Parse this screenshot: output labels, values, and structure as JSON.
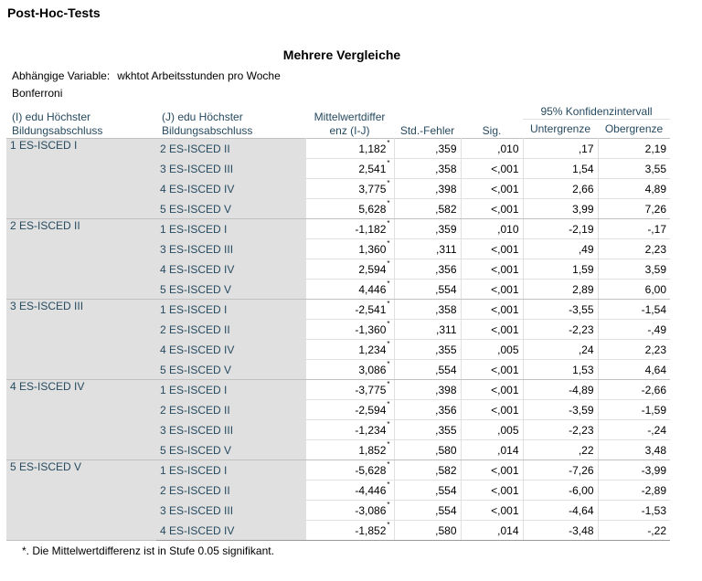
{
  "section_title": "Post-Hoc-Tests",
  "table_title": "Mehrere Vergleiche",
  "dependent_label": "Abhängige Variable:",
  "dependent_value": "wkhtot Arbeitsstunden pro Woche",
  "method": "Bonferroni",
  "headers": {
    "i_label_1": "(I) edu Höchster",
    "i_label_2": "Bildungsabschluss",
    "j_label_1": "(J) edu Höchster",
    "j_label_2": "Bildungsabschluss",
    "diff_1": "Mittelwertdiffer",
    "diff_2": "enz (I-J)",
    "se": "Std.-Fehler",
    "sig": "Sig.",
    "ci": "95% Konfidenzintervall",
    "lower": "Untergrenze",
    "upper": "Obergrenze"
  },
  "groups": [
    {
      "label": "1 ES-ISCED I",
      "rows": [
        {
          "j": "2 ES-ISCED II",
          "diff": "1,182",
          "star": "*",
          "se": ",359",
          "sig": ",010",
          "lo": ",17",
          "hi": "2,19"
        },
        {
          "j": "3 ES-ISCED III",
          "diff": "2,541",
          "star": "*",
          "se": ",358",
          "sig": "<,001",
          "lo": "1,54",
          "hi": "3,55"
        },
        {
          "j": "4 ES-ISCED IV",
          "diff": "3,775",
          "star": "*",
          "se": ",398",
          "sig": "<,001",
          "lo": "2,66",
          "hi": "4,89"
        },
        {
          "j": "5 ES-ISCED V",
          "diff": "5,628",
          "star": "*",
          "se": ",582",
          "sig": "<,001",
          "lo": "3,99",
          "hi": "7,26"
        }
      ]
    },
    {
      "label": "2 ES-ISCED II",
      "rows": [
        {
          "j": "1 ES-ISCED I",
          "diff": "-1,182",
          "star": "*",
          "se": ",359",
          "sig": ",010",
          "lo": "-2,19",
          "hi": "-,17"
        },
        {
          "j": "3 ES-ISCED III",
          "diff": "1,360",
          "star": "*",
          "se": ",311",
          "sig": "<,001",
          "lo": ",49",
          "hi": "2,23"
        },
        {
          "j": "4 ES-ISCED IV",
          "diff": "2,594",
          "star": "*",
          "se": ",356",
          "sig": "<,001",
          "lo": "1,59",
          "hi": "3,59"
        },
        {
          "j": "5 ES-ISCED V",
          "diff": "4,446",
          "star": "*",
          "se": ",554",
          "sig": "<,001",
          "lo": "2,89",
          "hi": "6,00"
        }
      ]
    },
    {
      "label": "3 ES-ISCED III",
      "rows": [
        {
          "j": "1 ES-ISCED I",
          "diff": "-2,541",
          "star": "*",
          "se": ",358",
          "sig": "<,001",
          "lo": "-3,55",
          "hi": "-1,54"
        },
        {
          "j": "2 ES-ISCED II",
          "diff": "-1,360",
          "star": "*",
          "se": ",311",
          "sig": "<,001",
          "lo": "-2,23",
          "hi": "-,49"
        },
        {
          "j": "4 ES-ISCED IV",
          "diff": "1,234",
          "star": "*",
          "se": ",355",
          "sig": ",005",
          "lo": ",24",
          "hi": "2,23"
        },
        {
          "j": "5 ES-ISCED V",
          "diff": "3,086",
          "star": "*",
          "se": ",554",
          "sig": "<,001",
          "lo": "1,53",
          "hi": "4,64"
        }
      ]
    },
    {
      "label": "4 ES-ISCED IV",
      "rows": [
        {
          "j": "1 ES-ISCED I",
          "diff": "-3,775",
          "star": "*",
          "se": ",398",
          "sig": "<,001",
          "lo": "-4,89",
          "hi": "-2,66"
        },
        {
          "j": "2 ES-ISCED II",
          "diff": "-2,594",
          "star": "*",
          "se": ",356",
          "sig": "<,001",
          "lo": "-3,59",
          "hi": "-1,59"
        },
        {
          "j": "3 ES-ISCED III",
          "diff": "-1,234",
          "star": "*",
          "se": ",355",
          "sig": ",005",
          "lo": "-2,23",
          "hi": "-,24"
        },
        {
          "j": "5 ES-ISCED V",
          "diff": "1,852",
          "star": "*",
          "se": ",580",
          "sig": ",014",
          "lo": ",22",
          "hi": "3,48"
        }
      ]
    },
    {
      "label": "5 ES-ISCED V",
      "rows": [
        {
          "j": "1 ES-ISCED I",
          "diff": "-5,628",
          "star": "*",
          "se": ",582",
          "sig": "<,001",
          "lo": "-7,26",
          "hi": "-3,99"
        },
        {
          "j": "2 ES-ISCED II",
          "diff": "-4,446",
          "star": "*",
          "se": ",554",
          "sig": "<,001",
          "lo": "-6,00",
          "hi": "-2,89"
        },
        {
          "j": "3 ES-ISCED III",
          "diff": "-3,086",
          "star": "*",
          "se": ",554",
          "sig": "<,001",
          "lo": "-4,64",
          "hi": "-1,53"
        },
        {
          "j": "4 ES-ISCED IV",
          "diff": "-1,852",
          "star": "*",
          "se": ",580",
          "sig": ",014",
          "lo": "-3,48",
          "hi": "-,22"
        }
      ]
    }
  ],
  "footnote": "*. Die Mittelwertdifferenz ist in Stufe 0.05 signifikant."
}
